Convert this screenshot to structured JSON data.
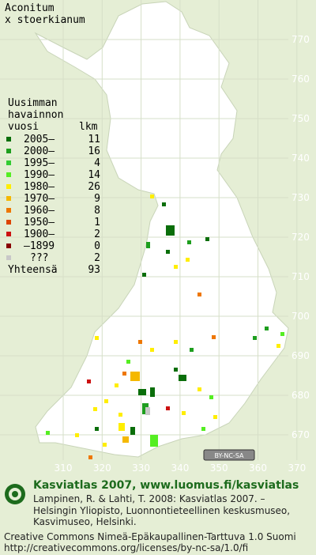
{
  "title": [
    "Aconitum",
    "x stoerkianum"
  ],
  "legend": {
    "heading": [
      "Uusimman",
      "havainnon",
      "vuosi"
    ],
    "count_heading": "lkm",
    "rows": [
      {
        "label": "2005–",
        "count": 11,
        "color": "#0a6e0a"
      },
      {
        "label": "2000–",
        "count": 16,
        "color": "#1e9e1e"
      },
      {
        "label": "1995–",
        "count": 4,
        "color": "#33cc33"
      },
      {
        "label": "1990–",
        "count": 14,
        "color": "#55ee22"
      },
      {
        "label": "1980–",
        "count": 26,
        "color": "#ffee00"
      },
      {
        "label": "1970–",
        "count": 9,
        "color": "#f5b800"
      },
      {
        "label": "1960–",
        "count": 8,
        "color": "#ee7700"
      },
      {
        "label": "1950–",
        "count": 1,
        "color": "#dd4400"
      },
      {
        "label": "1900–",
        "count": 2,
        "color": "#cc1111"
      },
      {
        "label": "–1899",
        "count": 0,
        "color": "#880000"
      },
      {
        "label": "???",
        "count": 2,
        "color": "#c8c8c8"
      }
    ],
    "total": {
      "label": "Yhteensä",
      "count": 93
    }
  },
  "grid": {
    "y_labels": [
      "770",
      "760",
      "750",
      "740",
      "730",
      "720",
      "710",
      "700",
      "690",
      "680",
      "670"
    ],
    "x_labels": [
      "310",
      "320",
      "330",
      "340",
      "350",
      "360",
      "370"
    ]
  },
  "license_badge": "BY-NC-SA",
  "footer": {
    "heading": "Kasviatlas 2007, www.luomus.fi/kasviatlas",
    "citation": [
      "Lampinen, R. & Lahti, T. 2008: Kasviatlas 2007. –",
      "Helsingin Yliopisto, Luonnontieteellinen keskusmuseo,",
      "Kasvimuseo, Helsinki."
    ],
    "license": [
      "Creative Commons Nimeä-Epäkaupallinen-Tarttuva 1.0 Suomi",
      "http://creativecommons.org/licenses/by-nc-sa/1.0/fi"
    ]
  }
}
